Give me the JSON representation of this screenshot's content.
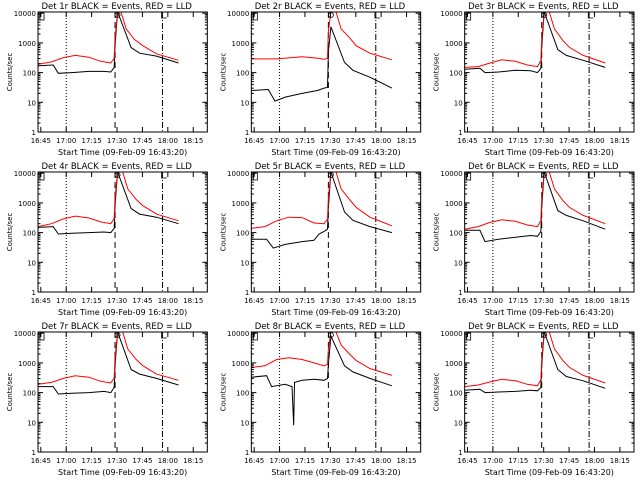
{
  "chart_data": {
    "type": "line",
    "panels": [
      {
        "title": "Det 1r BLACK = Events, RED = LLD",
        "xlabel": "Start Time (09-Feb-09 16:43:20)",
        "ylabel": "Counts/sec",
        "black": [
          [
            0,
            170
          ],
          [
            9,
            180
          ],
          [
            12,
            95
          ],
          [
            20,
            100
          ],
          [
            30,
            110
          ],
          [
            39,
            110
          ],
          [
            43,
            105
          ],
          [
            45,
            150
          ],
          [
            45.5,
            800
          ],
          [
            47,
            11000
          ],
          [
            55,
            700
          ],
          [
            60,
            450
          ],
          [
            70,
            360
          ],
          [
            83,
            210
          ]
        ],
        "red": [
          [
            0,
            190
          ],
          [
            8,
            230
          ],
          [
            15,
            320
          ],
          [
            22,
            380
          ],
          [
            30,
            330
          ],
          [
            37,
            240
          ],
          [
            43,
            210
          ],
          [
            45,
            300
          ],
          [
            45.5,
            1500
          ],
          [
            47,
            11000
          ],
          [
            49,
            11000
          ],
          [
            52,
            3000
          ],
          [
            57,
            1300
          ],
          [
            62,
            800
          ],
          [
            70,
            430
          ],
          [
            83,
            260
          ]
        ]
      },
      {
        "title": "Det 2r BLACK = Events, RED = LLD",
        "xlabel": "Start Time (09-Feb-09 16:43:20)",
        "ylabel": "Counts/sec",
        "black": [
          [
            0,
            25
          ],
          [
            10,
            27
          ],
          [
            14,
            11
          ],
          [
            20,
            15
          ],
          [
            30,
            20
          ],
          [
            39,
            25
          ],
          [
            43,
            30
          ],
          [
            45,
            32
          ],
          [
            45.5,
            500
          ],
          [
            47,
            3500
          ],
          [
            55,
            220
          ],
          [
            60,
            120
          ],
          [
            70,
            70
          ],
          [
            83,
            30
          ]
        ],
        "red": [
          [
            0,
            290
          ],
          [
            15,
            290
          ],
          [
            30,
            340
          ],
          [
            40,
            300
          ],
          [
            43,
            280
          ],
          [
            45,
            300
          ],
          [
            45.5,
            2500
          ],
          [
            47,
            11000
          ],
          [
            50,
            11000
          ],
          [
            53,
            3000
          ],
          [
            58,
            1500
          ],
          [
            62,
            800
          ],
          [
            70,
            450
          ],
          [
            83,
            270
          ]
        ]
      },
      {
        "title": "Det 3r BLACK = Events, RED = LLD",
        "xlabel": "Start Time (09-Feb-09 16:43:20)",
        "ylabel": "Counts/sec",
        "black": [
          [
            0,
            130
          ],
          [
            9,
            140
          ],
          [
            12,
            100
          ],
          [
            20,
            105
          ],
          [
            30,
            120
          ],
          [
            39,
            115
          ],
          [
            43,
            100
          ],
          [
            45,
            140
          ],
          [
            45.5,
            700
          ],
          [
            47,
            11000
          ],
          [
            55,
            600
          ],
          [
            60,
            380
          ],
          [
            70,
            260
          ],
          [
            83,
            150
          ]
        ],
        "red": [
          [
            0,
            150
          ],
          [
            8,
            160
          ],
          [
            15,
            210
          ],
          [
            22,
            270
          ],
          [
            30,
            240
          ],
          [
            37,
            180
          ],
          [
            43,
            160
          ],
          [
            45,
            260
          ],
          [
            45.5,
            1300
          ],
          [
            47,
            11000
          ],
          [
            50,
            11000
          ],
          [
            53,
            3000
          ],
          [
            58,
            1200
          ],
          [
            62,
            700
          ],
          [
            70,
            380
          ],
          [
            83,
            210
          ]
        ]
      },
      {
        "title": "Det 4r BLACK = Events, RED = LLD",
        "xlabel": "Start Time (09-Feb-09 16:43:20)",
        "ylabel": "Counts/sec",
        "black": [
          [
            0,
            150
          ],
          [
            9,
            160
          ],
          [
            12,
            90
          ],
          [
            20,
            95
          ],
          [
            30,
            100
          ],
          [
            39,
            105
          ],
          [
            43,
            100
          ],
          [
            45,
            140
          ],
          [
            45.5,
            800
          ],
          [
            47,
            11000
          ],
          [
            55,
            650
          ],
          [
            60,
            420
          ],
          [
            70,
            330
          ],
          [
            83,
            200
          ]
        ],
        "red": [
          [
            0,
            160
          ],
          [
            8,
            200
          ],
          [
            15,
            290
          ],
          [
            22,
            360
          ],
          [
            30,
            310
          ],
          [
            37,
            230
          ],
          [
            43,
            200
          ],
          [
            45,
            300
          ],
          [
            45.5,
            1500
          ],
          [
            47,
            11000
          ],
          [
            50,
            11000
          ],
          [
            53,
            3000
          ],
          [
            58,
            1300
          ],
          [
            62,
            800
          ],
          [
            70,
            420
          ],
          [
            83,
            250
          ]
        ]
      },
      {
        "title": "Det 5r BLACK = Events, RED = LLD",
        "xlabel": "Start Time (09-Feb-09 16:43:20)",
        "ylabel": "Counts/sec",
        "black": [
          [
            0,
            60
          ],
          [
            9,
            60
          ],
          [
            13,
            30
          ],
          [
            20,
            40
          ],
          [
            30,
            50
          ],
          [
            37,
            55
          ],
          [
            40,
            90
          ],
          [
            43,
            110
          ],
          [
            45,
            130
          ],
          [
            45.5,
            700
          ],
          [
            47,
            11000
          ],
          [
            55,
            500
          ],
          [
            60,
            260
          ],
          [
            70,
            160
          ],
          [
            83,
            100
          ]
        ],
        "red": [
          [
            0,
            140
          ],
          [
            8,
            160
          ],
          [
            15,
            250
          ],
          [
            22,
            330
          ],
          [
            30,
            320
          ],
          [
            37,
            210
          ],
          [
            43,
            200
          ],
          [
            45,
            280
          ],
          [
            45.5,
            1500
          ],
          [
            47,
            11000
          ],
          [
            50,
            11000
          ],
          [
            53,
            3000
          ],
          [
            58,
            1300
          ],
          [
            62,
            700
          ],
          [
            70,
            330
          ],
          [
            83,
            170
          ]
        ]
      },
      {
        "title": "Det 6r BLACK = Events, RED = LLD",
        "xlabel": "Start Time (09-Feb-09 16:43:20)",
        "ylabel": "Counts/sec",
        "black": [
          [
            0,
            120
          ],
          [
            9,
            120
          ],
          [
            12,
            50
          ],
          [
            20,
            60
          ],
          [
            30,
            70
          ],
          [
            39,
            80
          ],
          [
            43,
            75
          ],
          [
            45,
            110
          ],
          [
            45.5,
            700
          ],
          [
            47,
            11000
          ],
          [
            55,
            550
          ],
          [
            60,
            380
          ],
          [
            70,
            250
          ],
          [
            83,
            130
          ]
        ],
        "red": [
          [
            0,
            130
          ],
          [
            8,
            160
          ],
          [
            15,
            220
          ],
          [
            22,
            270
          ],
          [
            30,
            240
          ],
          [
            37,
            180
          ],
          [
            43,
            160
          ],
          [
            45,
            260
          ],
          [
            45.5,
            1300
          ],
          [
            47,
            11000
          ],
          [
            50,
            11000
          ],
          [
            53,
            3000
          ],
          [
            58,
            1200
          ],
          [
            62,
            700
          ],
          [
            70,
            380
          ],
          [
            83,
            200
          ]
        ]
      },
      {
        "title": "Det 7r BLACK = Events, RED = LLD",
        "xlabel": "Start Time (09-Feb-09 16:43:20)",
        "ylabel": "Counts/sec",
        "black": [
          [
            0,
            160
          ],
          [
            9,
            160
          ],
          [
            12,
            90
          ],
          [
            20,
            95
          ],
          [
            30,
            100
          ],
          [
            39,
            110
          ],
          [
            43,
            100
          ],
          [
            45,
            150
          ],
          [
            45.5,
            800
          ],
          [
            47,
            11000
          ],
          [
            55,
            600
          ],
          [
            60,
            420
          ],
          [
            70,
            300
          ],
          [
            83,
            180
          ]
        ],
        "red": [
          [
            0,
            190
          ],
          [
            8,
            220
          ],
          [
            15,
            300
          ],
          [
            22,
            370
          ],
          [
            30,
            330
          ],
          [
            37,
            240
          ],
          [
            43,
            210
          ],
          [
            45,
            310
          ],
          [
            45.5,
            1500
          ],
          [
            47,
            11000
          ],
          [
            50,
            11000
          ],
          [
            53,
            3000
          ],
          [
            58,
            1300
          ],
          [
            62,
            800
          ],
          [
            70,
            420
          ],
          [
            83,
            260
          ]
        ]
      },
      {
        "title": "Det 8r BLACK = Events, RED = LLD",
        "xlabel": "Start Time (09-Feb-09 16:43:20)",
        "ylabel": "Counts/sec",
        "black": [
          [
            0,
            330
          ],
          [
            9,
            370
          ],
          [
            12,
            160
          ],
          [
            20,
            190
          ],
          [
            24,
            160
          ],
          [
            25,
            8
          ],
          [
            25.5,
            220
          ],
          [
            30,
            260
          ],
          [
            37,
            280
          ],
          [
            43,
            260
          ],
          [
            45,
            300
          ],
          [
            45.5,
            900
          ],
          [
            47,
            8000
          ],
          [
            55,
            800
          ],
          [
            60,
            500
          ],
          [
            70,
            300
          ],
          [
            83,
            170
          ]
        ],
        "red": [
          [
            0,
            700
          ],
          [
            8,
            800
          ],
          [
            15,
            1300
          ],
          [
            22,
            1500
          ],
          [
            30,
            1300
          ],
          [
            37,
            1000
          ],
          [
            43,
            800
          ],
          [
            45,
            900
          ],
          [
            45.5,
            3000
          ],
          [
            47,
            11000
          ],
          [
            50,
            11000
          ],
          [
            53,
            4000
          ],
          [
            58,
            2000
          ],
          [
            62,
            1200
          ],
          [
            70,
            650
          ],
          [
            83,
            380
          ]
        ]
      },
      {
        "title": "Det 9r BLACK = Events, RED = LLD",
        "xlabel": "Start Time (09-Feb-09 16:43:20)",
        "ylabel": "Counts/sec",
        "black": [
          [
            0,
            120
          ],
          [
            9,
            130
          ],
          [
            12,
            100
          ],
          [
            20,
            105
          ],
          [
            30,
            110
          ],
          [
            39,
            120
          ],
          [
            43,
            115
          ],
          [
            45,
            150
          ],
          [
            45.5,
            800
          ],
          [
            47,
            11000
          ],
          [
            55,
            600
          ],
          [
            60,
            350
          ],
          [
            70,
            250
          ],
          [
            83,
            140
          ]
        ],
        "red": [
          [
            0,
            160
          ],
          [
            8,
            180
          ],
          [
            15,
            230
          ],
          [
            22,
            280
          ],
          [
            30,
            250
          ],
          [
            37,
            190
          ],
          [
            43,
            170
          ],
          [
            45,
            270
          ],
          [
            45.5,
            1300
          ],
          [
            47,
            11000
          ],
          [
            50,
            11000
          ],
          [
            53,
            3000
          ],
          [
            58,
            1200
          ],
          [
            62,
            700
          ],
          [
            70,
            380
          ],
          [
            83,
            210
          ]
        ]
      }
    ],
    "xticks": [
      "16:45",
      "17:00",
      "17:15",
      "17:30",
      "17:45",
      "18:00",
      "18:15"
    ],
    "xtick_minutes": [
      1.67,
      16.67,
      31.67,
      46.67,
      61.67,
      76.67,
      91.67
    ],
    "xlim_minutes": [
      0,
      100
    ],
    "yticks": [
      "1",
      "10",
      "100",
      "1000",
      "10000"
    ],
    "ylim": [
      1,
      11000
    ],
    "y_scale": "log",
    "vlines": [
      {
        "minute": 16.67,
        "style": "dotted"
      },
      {
        "minute": 45.5,
        "style": "dashed"
      },
      {
        "minute": 73.5,
        "style": "dashdot"
      }
    ],
    "colors": {
      "black": "#000000",
      "red": "#ff0000",
      "axes": "#000000"
    }
  }
}
